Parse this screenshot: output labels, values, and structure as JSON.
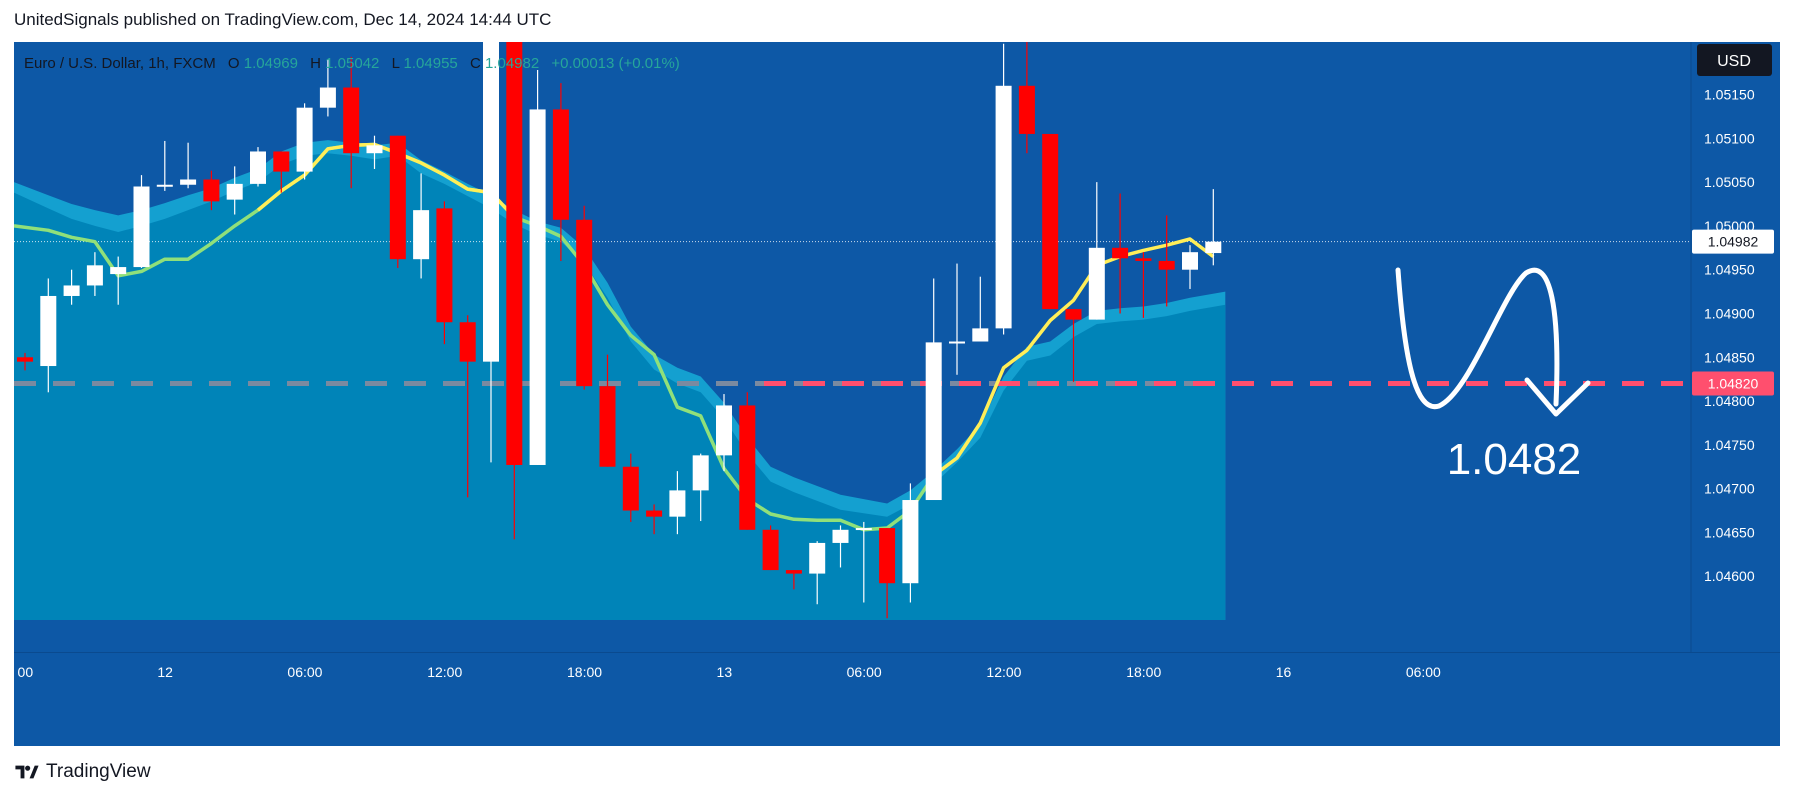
{
  "header": {
    "publisher_line": "UnitedSignals published on TradingView.com, Dec 14, 2024 14:44 UTC"
  },
  "footer": {
    "brand": "TradingView"
  },
  "colors": {
    "background": "#0d58a6",
    "band": "#0084b8",
    "band_edge": "#14a0d0",
    "up": "#ffffff",
    "down": "#ff0000",
    "ema_green": "#90e07a",
    "ema_yellow": "#ffee58",
    "level_line": "#ff4f6e",
    "axis_bg": "#004f98",
    "badge": "#131722"
  },
  "legend": {
    "symbol": "Euro / U.S. Dollar, 1h, FXCM",
    "o_label": "O",
    "o_value": "1.04969",
    "h_label": "H",
    "h_value": "1.05042",
    "l_label": "L",
    "l_value": "1.04955",
    "c_label": "C",
    "c_value": "1.04982",
    "change": "+0.00013 (+0.01%)"
  },
  "currency_badge": "USD",
  "annotation_text": "1.0482",
  "chart_data": {
    "type": "candlestick",
    "symbol": "EURUSD",
    "interval": "1h",
    "ylim": [
      1.0455,
      1.0521
    ],
    "y_ticks": [
      "1.05150",
      "1.05100",
      "1.05050",
      "1.05000",
      "1.04950",
      "1.04900",
      "1.04850",
      "1.04800",
      "1.04750",
      "1.04700",
      "1.04650",
      "1.04600"
    ],
    "x_ticks": [
      {
        "label": "00",
        "bar": -0.5
      },
      {
        "label": "12",
        "bar": 5.5
      },
      {
        "label": "06:00",
        "bar": 11.5
      },
      {
        "label": "12:00",
        "bar": 17.5
      },
      {
        "label": "18:00",
        "bar": 23.5
      },
      {
        "label": "13",
        "bar": 29.5
      },
      {
        "label": "06:00",
        "bar": 35.5
      },
      {
        "label": "12:00",
        "bar": 41.5
      },
      {
        "label": "18:00",
        "bar": 47.5
      },
      {
        "label": "16",
        "bar": 53.5
      },
      {
        "label": "06:00",
        "bar": 59.5
      }
    ],
    "total_slots": 63,
    "candles": [
      [
        1.0485,
        1.04845,
        1.04835,
        1.04855
      ],
      [
        1.0484,
        1.0492,
        1.0481,
        1.0494
      ],
      [
        1.0492,
        1.04932,
        1.0491,
        1.0495
      ],
      [
        1.04932,
        1.04955,
        1.0492,
        1.0497
      ],
      [
        1.04945,
        1.04953,
        1.0491,
        1.04965
      ],
      [
        1.04953,
        1.05045,
        1.04952,
        1.05058
      ],
      [
        1.05045,
        1.05047,
        1.0504,
        1.05097
      ],
      [
        1.05047,
        1.05053,
        1.05043,
        1.05095
      ],
      [
        1.05053,
        1.05028,
        1.05018,
        1.05063
      ],
      [
        1.0503,
        1.05048,
        1.05013,
        1.05068
      ],
      [
        1.05048,
        1.05085,
        1.05045,
        1.0509
      ],
      [
        1.05085,
        1.05062,
        1.05038,
        1.05085
      ],
      [
        1.05062,
        1.05135,
        1.05053,
        1.0514
      ],
      [
        1.05135,
        1.05158,
        1.05125,
        1.0519
      ],
      [
        1.05158,
        1.05083,
        1.05043,
        1.05193
      ],
      [
        1.05083,
        1.05092,
        1.05065,
        1.05103
      ],
      [
        1.05103,
        1.04962,
        1.04952,
        1.05103
      ],
      [
        1.04962,
        1.05018,
        1.0494,
        1.0506
      ],
      [
        1.0502,
        1.0489,
        1.04865,
        1.05028
      ],
      [
        1.0489,
        1.04845,
        1.0469,
        1.04898
      ],
      [
        1.04845,
        1.0523,
        1.0473,
        1.0523
      ],
      [
        1.0523,
        1.04727,
        1.04642,
        1.0523
      ],
      [
        1.04727,
        1.05133,
        1.04727,
        1.05178
      ],
      [
        1.05133,
        1.05007,
        1.0496,
        1.05163
      ],
      [
        1.05007,
        1.04817,
        1.04813,
        1.05023
      ],
      [
        1.04817,
        1.04725,
        1.04725,
        1.04853
      ],
      [
        1.04725,
        1.04675,
        1.04662,
        1.0474
      ],
      [
        1.04675,
        1.04668,
        1.04648,
        1.04682
      ],
      [
        1.04668,
        1.04698,
        1.04648,
        1.0472
      ],
      [
        1.04698,
        1.04738,
        1.04663,
        1.0474
      ],
      [
        1.04738,
        1.04795,
        1.0472,
        1.04808
      ],
      [
        1.04795,
        1.04653,
        1.04653,
        1.0481
      ],
      [
        1.04653,
        1.04607,
        1.04607,
        1.04658
      ],
      [
        1.04607,
        1.04603,
        1.04585,
        1.04607
      ],
      [
        1.04603,
        1.04638,
        1.04568,
        1.0464
      ],
      [
        1.04638,
        1.04653,
        1.0461,
        1.04658
      ],
      [
        1.04653,
        1.04655,
        1.0457,
        1.04662
      ],
      [
        1.04655,
        1.04592,
        1.04552,
        1.04655
      ],
      [
        1.04592,
        1.04687,
        1.0457,
        1.04706
      ],
      [
        1.04687,
        1.04867,
        1.04687,
        1.0494
      ],
      [
        1.04867,
        1.04868,
        1.0483,
        1.04957
      ],
      [
        1.04868,
        1.04883,
        1.04868,
        1.04942
      ],
      [
        1.04883,
        1.0516,
        1.04876,
        1.05208
      ],
      [
        1.0516,
        1.05105,
        1.05083,
        1.0522
      ],
      [
        1.05105,
        1.04905,
        1.04905,
        1.05105
      ],
      [
        1.04905,
        1.04893,
        1.04822,
        1.04905
      ],
      [
        1.04893,
        1.04975,
        1.04893,
        1.0505
      ],
      [
        1.04975,
        1.04963,
        1.049,
        1.05037
      ],
      [
        1.04963,
        1.0496,
        1.04895,
        1.0497
      ],
      [
        1.0496,
        1.0495,
        1.04908,
        1.05012
      ],
      [
        1.0495,
        1.0497,
        1.04928,
        1.04978
      ],
      [
        1.04969,
        1.04982,
        1.04955,
        1.05042
      ]
    ],
    "ema_green": [
      1.05,
      1.04995,
      1.04987,
      1.04982,
      1.04943,
      1.04948,
      1.04962,
      1.04962,
      1.0498,
      1.05,
      1.05018,
      1.0504,
      1.05058,
      1.05088,
      1.05092,
      1.05093,
      1.05083,
      1.05072,
      1.05058,
      1.05042,
      1.05038,
      1.0501,
      1.05,
      1.04988,
      1.04955,
      1.0491,
      1.04875,
      1.04853,
      1.04793,
      1.04783,
      1.04723,
      1.04688,
      1.04671,
      1.04665,
      1.04664,
      1.04664,
      1.04653,
      1.04655,
      1.04675,
      1.04715
    ],
    "ema_yellow": [
      1.04735,
      1.04775,
      1.04838,
      1.04858,
      1.04892,
      1.04915,
      1.04955,
      1.04965,
      1.04972,
      1.04978,
      1.04985,
      1.04965
    ],
    "band_upper": [
      1.0505,
      1.05035,
      1.05025,
      1.05018,
      1.05012,
      1.05018,
      1.05026,
      1.05035,
      1.05043,
      1.05055,
      1.05065,
      1.05085,
      1.05095,
      1.05098,
      1.05095,
      1.05092,
      1.05095,
      1.05075,
      1.05062,
      1.05048,
      1.05035,
      1.05018,
      1.05005,
      1.04998,
      1.04975,
      1.04935,
      1.04885,
      1.04853,
      1.04838,
      1.04828,
      1.04798,
      1.04758,
      1.04725,
      1.04713,
      1.04703,
      1.04693,
      1.04688,
      1.04683,
      1.04698,
      1.0472,
      1.04745,
      1.04773,
      1.04828,
      1.04862,
      1.04868,
      1.04888,
      1.04903,
      1.04906,
      1.04908,
      1.04912,
      1.04918,
      1.04925
    ],
    "band_lower": [
      1.05038,
      1.0502,
      1.05008,
      1.05,
      1.04993,
      1.05,
      1.05008,
      1.05018,
      1.05028,
      1.0504,
      1.0505,
      1.0507,
      1.0508,
      1.05083,
      1.0508,
      1.05076,
      1.0508,
      1.0506,
      1.05048,
      1.05034,
      1.0502,
      1.05002,
      1.0499,
      1.04982,
      1.04958,
      1.04918,
      1.04868,
      1.04836,
      1.0482,
      1.0481,
      1.0478,
      1.0474,
      1.04708,
      1.04696,
      1.04686,
      1.04676,
      1.04672,
      1.04668,
      1.04682,
      1.04705,
      1.0473,
      1.04758,
      1.04812,
      1.04846,
      1.04852,
      1.04873,
      1.04888,
      1.04891,
      1.04893,
      1.04897,
      1.04903,
      1.0491
    ],
    "price_level": {
      "value": 1.0482,
      "label": "1.04820"
    },
    "last_price": {
      "value": 1.04982,
      "label": "1.04982"
    }
  }
}
